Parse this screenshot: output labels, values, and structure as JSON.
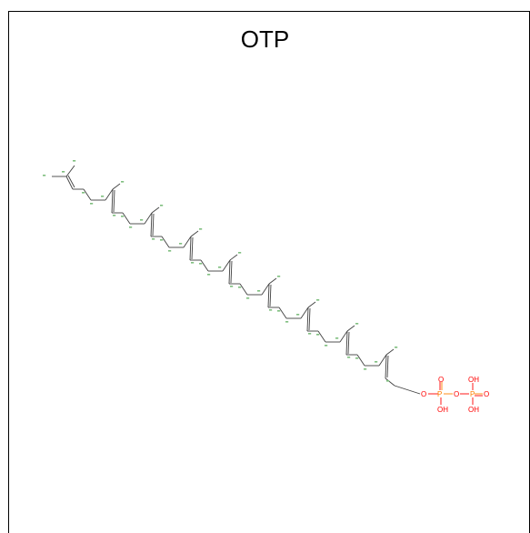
{
  "title": "OTP",
  "colors": {
    "bond": "#404040",
    "atom_label": "#7fbf7f",
    "oxygen": "#ff0000",
    "phosphorus": "#ff8000"
  },
  "heteroatoms": {
    "o_bridge_left": "O",
    "p1": "P",
    "p1_o_top": "O",
    "p1_oh_bottom": "OH",
    "o_bridge_right": "O",
    "p2": "P",
    "p2_oh_top": "OH",
    "p2_o_right": "O",
    "p2_oh_bottom": "OH"
  }
}
